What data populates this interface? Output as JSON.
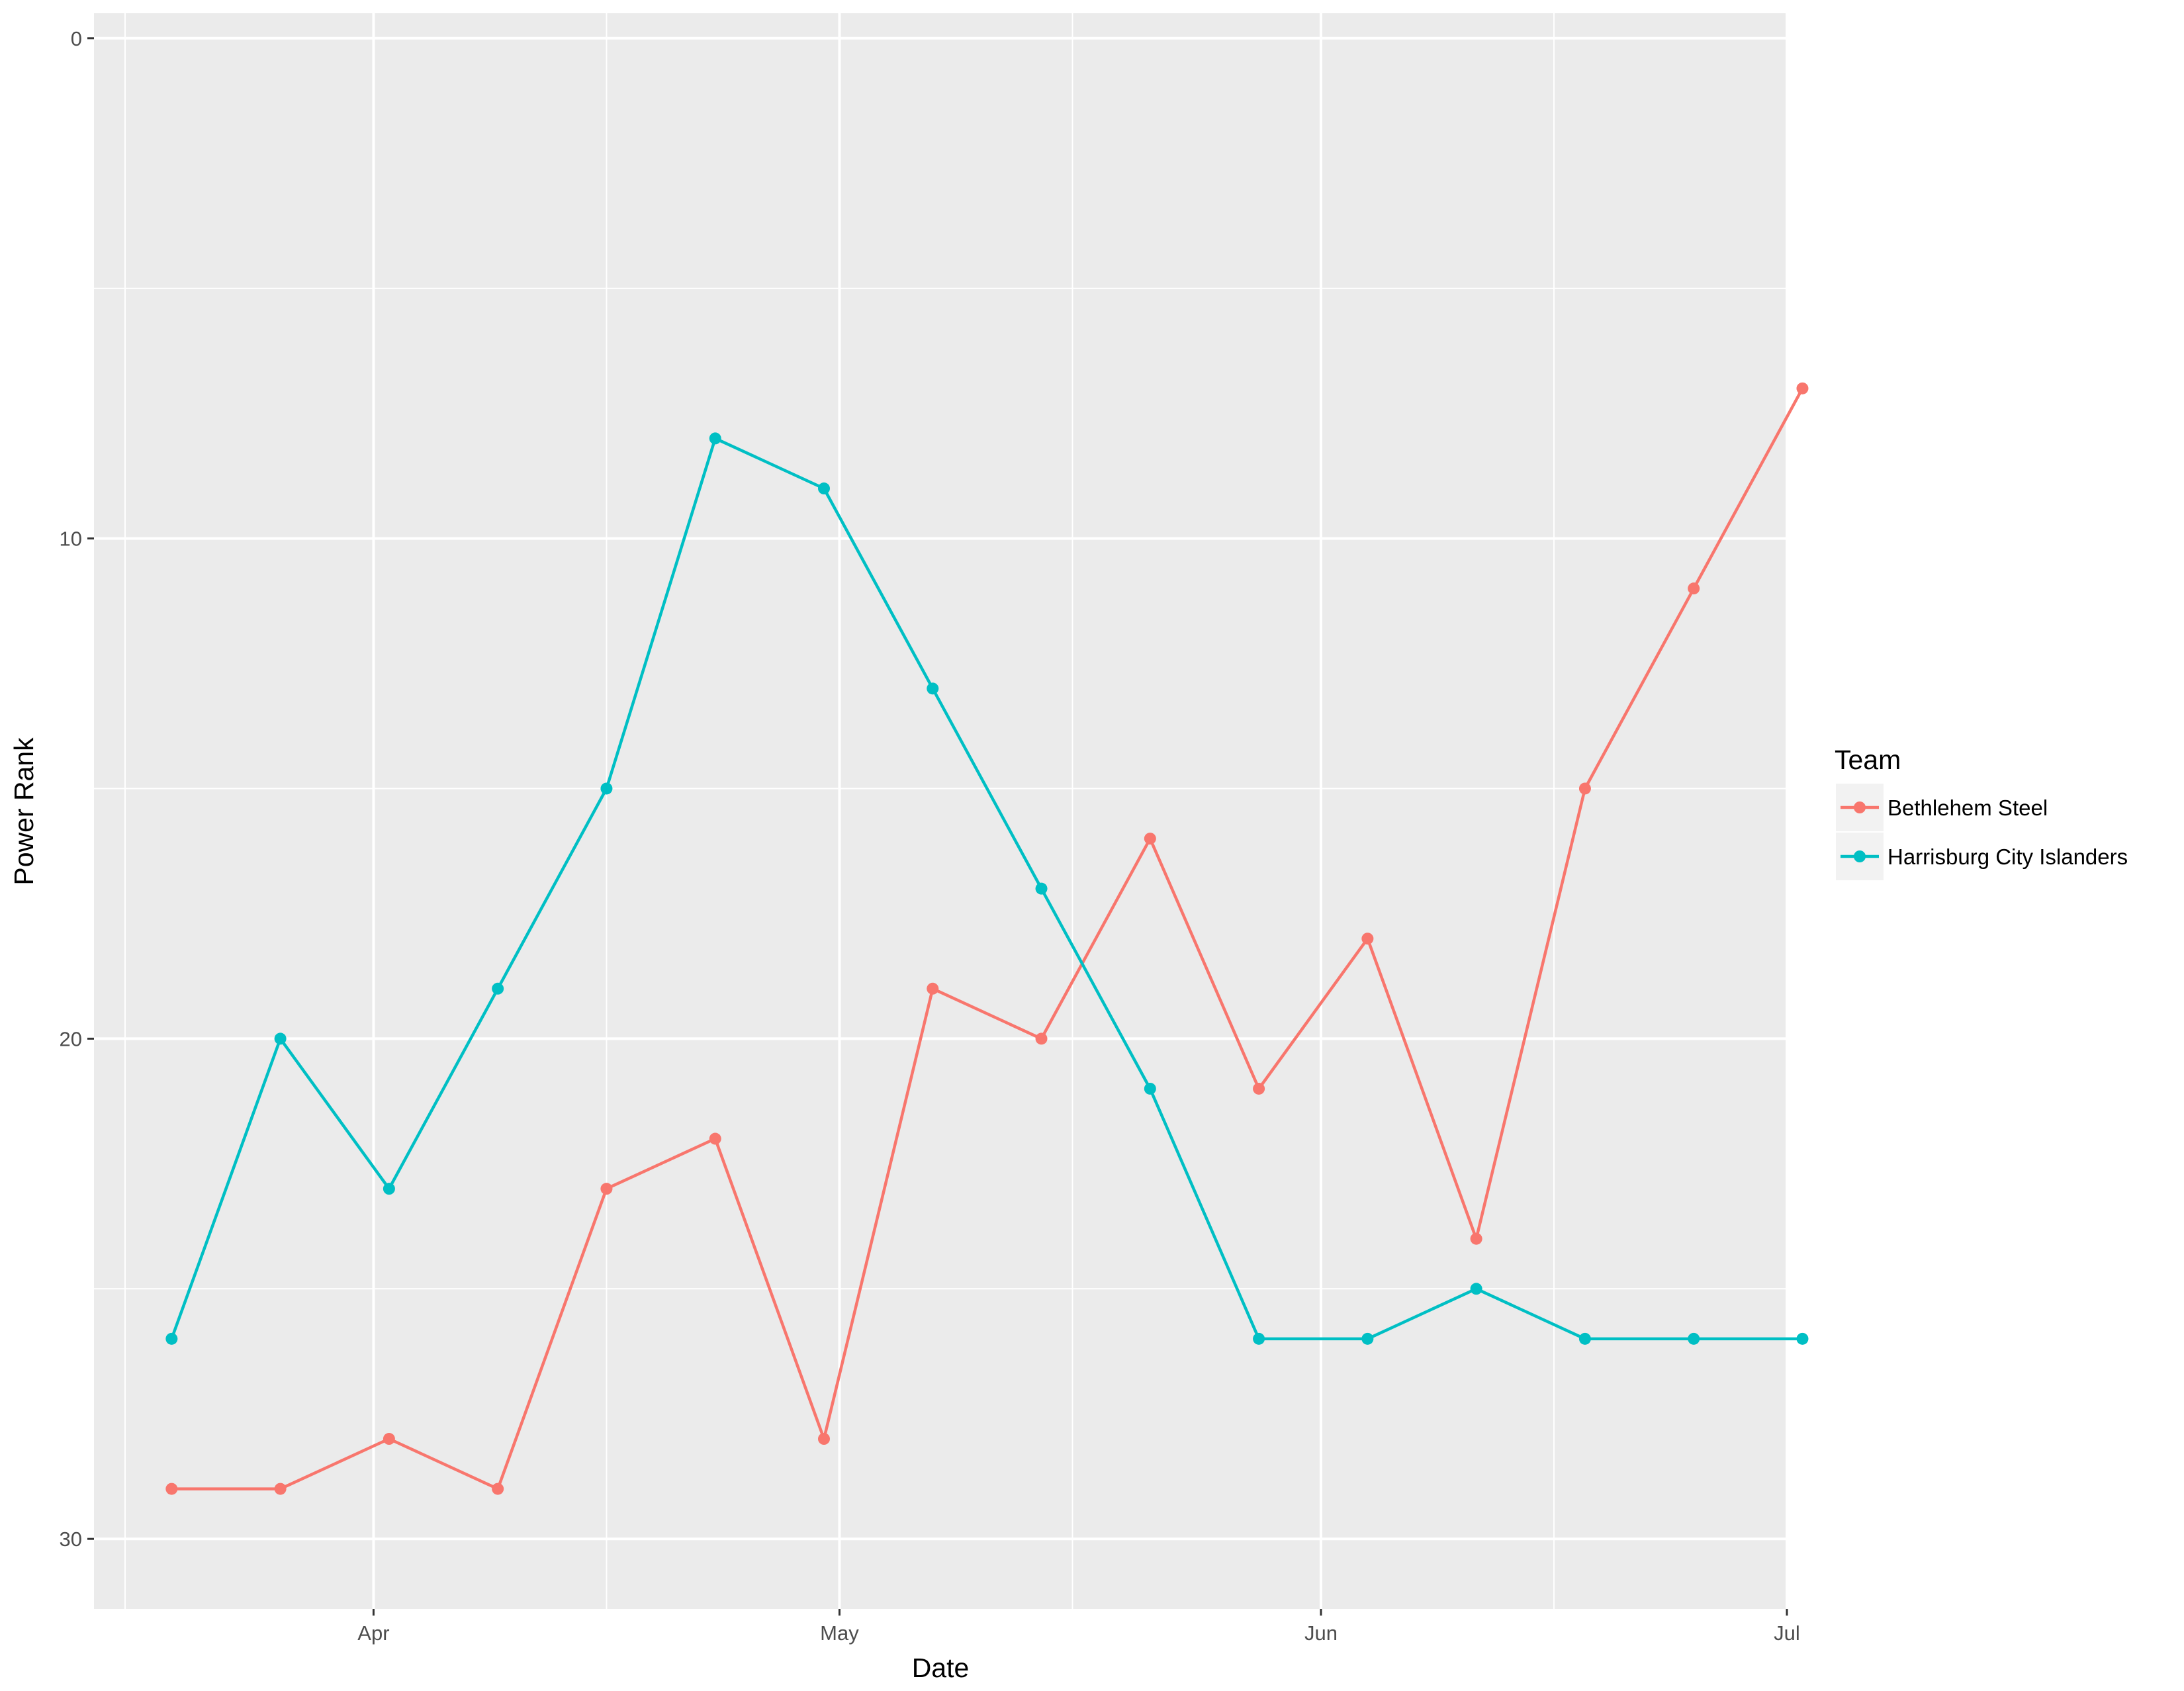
{
  "chart_data": {
    "type": "line",
    "xlabel": "Date",
    "ylabel": "Power Rank",
    "y_reversed": true,
    "ylim": [
      31.4,
      -0.5
    ],
    "yticks": [
      0,
      10,
      20,
      30
    ],
    "xlim": [
      "2016-03-14",
      "2016-07-01"
    ],
    "xticks": [
      {
        "label": "Apr",
        "date": "2016-04-01"
      },
      {
        "label": "May",
        "date": "2016-05-01"
      },
      {
        "label": "Jun",
        "date": "2016-06-01"
      },
      {
        "label": "Jul",
        "date": "2016-07-01"
      }
    ],
    "x_minor_gridlines": [
      "2016-03-16",
      "2016-04-16",
      "2016-05-16",
      "2016-06-16"
    ],
    "x": [
      "2016-03-19",
      "2016-03-26",
      "2016-04-02",
      "2016-04-09",
      "2016-04-16",
      "2016-04-23",
      "2016-04-30",
      "2016-05-07",
      "2016-05-14",
      "2016-05-21",
      "2016-05-28",
      "2016-06-04",
      "2016-06-11",
      "2016-06-18",
      "2016-06-25",
      "2016-07-02"
    ],
    "series": [
      {
        "name": "Bethlehem Steel",
        "color": "#F8766D",
        "values": [
          29,
          29,
          28,
          29,
          23,
          22,
          28,
          19,
          20,
          16,
          21,
          18,
          24,
          15,
          11,
          7
        ]
      },
      {
        "name": "Harrisburg City Islanders",
        "color": "#00BFC4",
        "values": [
          26,
          20,
          23,
          19,
          15,
          8,
          9,
          13,
          17,
          21,
          26,
          26,
          25,
          26,
          26,
          26
        ]
      }
    ],
    "grid": true,
    "panel_background": "#EBEBEB",
    "legend": {
      "title": "Team",
      "position": "right"
    }
  }
}
